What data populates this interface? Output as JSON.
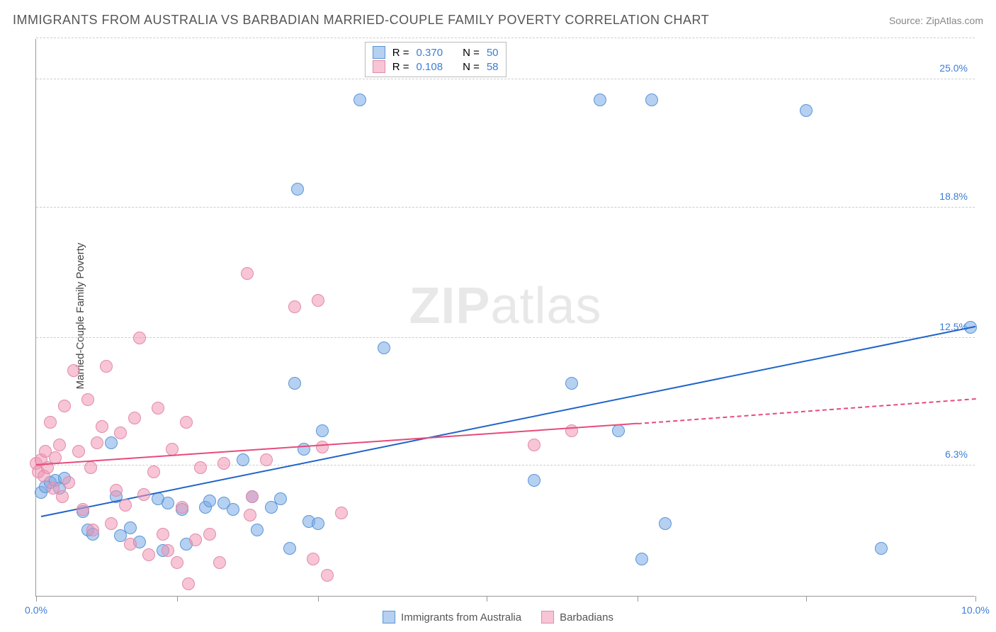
{
  "title": "IMMIGRANTS FROM AUSTRALIA VS BARBADIAN MARRIED-COUPLE FAMILY POVERTY CORRELATION CHART",
  "source": "Source: ZipAtlas.com",
  "watermark_a": "ZIP",
  "watermark_b": "atlas",
  "y_axis_label": "Married-Couple Family Poverty",
  "xlim": [
    0,
    10
  ],
  "ylim": [
    0,
    27
  ],
  "x_ticks": [
    0,
    1.5,
    3.0,
    4.8,
    6.4,
    8.2,
    10
  ],
  "x_tick_labels": {
    "0": "0.0%",
    "10": "10.0%"
  },
  "y_grid": [
    6.3,
    12.5,
    18.8,
    25.0
  ],
  "y_tick_labels": [
    "6.3%",
    "12.5%",
    "18.8%",
    "25.0%"
  ],
  "series": [
    {
      "name": "Immigrants from Australia",
      "color_fill": "rgba(120,170,230,0.55)",
      "color_stroke": "#5a96d6",
      "trend_color": "#1f63c9",
      "r_label": "R =",
      "r_value": "0.370",
      "n_label": "N =",
      "n_value": "50",
      "marker_size": 18,
      "trend": {
        "x1": 0.05,
        "y1": 3.8,
        "x2": 10.0,
        "y2": 13.0
      },
      "points": [
        [
          0.05,
          5.0
        ],
        [
          0.1,
          5.3
        ],
        [
          0.15,
          5.5
        ],
        [
          0.2,
          5.6
        ],
        [
          0.25,
          5.2
        ],
        [
          0.3,
          5.7
        ],
        [
          0.5,
          4.1
        ],
        [
          0.55,
          3.2
        ],
        [
          0.6,
          3.0
        ],
        [
          0.8,
          7.4
        ],
        [
          0.85,
          4.8
        ],
        [
          0.9,
          2.9
        ],
        [
          1.0,
          3.3
        ],
        [
          1.1,
          2.6
        ],
        [
          1.3,
          4.7
        ],
        [
          1.35,
          2.2
        ],
        [
          1.4,
          4.5
        ],
        [
          1.55,
          4.2
        ],
        [
          1.6,
          2.5
        ],
        [
          1.8,
          4.3
        ],
        [
          1.85,
          4.6
        ],
        [
          2.0,
          4.5
        ],
        [
          2.1,
          4.2
        ],
        [
          2.2,
          6.6
        ],
        [
          2.3,
          4.8
        ],
        [
          2.35,
          3.2
        ],
        [
          2.5,
          4.3
        ],
        [
          2.6,
          4.7
        ],
        [
          2.7,
          2.3
        ],
        [
          2.75,
          10.3
        ],
        [
          2.78,
          19.7
        ],
        [
          2.85,
          7.1
        ],
        [
          2.9,
          3.6
        ],
        [
          3.0,
          3.5
        ],
        [
          3.05,
          8.0
        ],
        [
          3.45,
          24.0
        ],
        [
          3.7,
          12.0
        ],
        [
          5.3,
          5.6
        ],
        [
          5.7,
          10.3
        ],
        [
          6.0,
          24.0
        ],
        [
          6.2,
          8.0
        ],
        [
          6.45,
          1.8
        ],
        [
          6.55,
          24.0
        ],
        [
          6.7,
          3.5
        ],
        [
          8.2,
          23.5
        ],
        [
          9.0,
          2.3
        ],
        [
          9.95,
          13.0
        ]
      ]
    },
    {
      "name": "Barbadians",
      "color_fill": "rgba(240,150,180,0.55)",
      "color_stroke": "#e28aa8",
      "trend_color": "#e74b7a",
      "r_label": "R =",
      "r_value": "0.108",
      "n_label": "N =",
      "n_value": "58",
      "marker_size": 18,
      "trend": {
        "x1": 0.0,
        "y1": 6.3,
        "x2": 6.4,
        "y2": 8.3
      },
      "trend_dash": {
        "x1": 6.4,
        "y1": 8.3,
        "x2": 10.0,
        "y2": 9.5
      },
      "points": [
        [
          0.0,
          6.4
        ],
        [
          0.02,
          6.0
        ],
        [
          0.05,
          6.6
        ],
        [
          0.08,
          5.8
        ],
        [
          0.1,
          7.0
        ],
        [
          0.12,
          6.2
        ],
        [
          0.15,
          8.4
        ],
        [
          0.18,
          5.2
        ],
        [
          0.2,
          6.7
        ],
        [
          0.25,
          7.3
        ],
        [
          0.28,
          4.8
        ],
        [
          0.3,
          9.2
        ],
        [
          0.35,
          5.5
        ],
        [
          0.4,
          10.9
        ],
        [
          0.45,
          7.0
        ],
        [
          0.5,
          4.2
        ],
        [
          0.55,
          9.5
        ],
        [
          0.58,
          6.2
        ],
        [
          0.6,
          3.2
        ],
        [
          0.65,
          7.4
        ],
        [
          0.7,
          8.2
        ],
        [
          0.75,
          11.1
        ],
        [
          0.8,
          3.5
        ],
        [
          0.85,
          5.1
        ],
        [
          0.9,
          7.9
        ],
        [
          0.95,
          4.4
        ],
        [
          1.0,
          2.5
        ],
        [
          1.05,
          8.6
        ],
        [
          1.1,
          12.5
        ],
        [
          1.15,
          4.9
        ],
        [
          1.2,
          2.0
        ],
        [
          1.25,
          6.0
        ],
        [
          1.3,
          9.1
        ],
        [
          1.35,
          3.0
        ],
        [
          1.4,
          2.2
        ],
        [
          1.45,
          7.1
        ],
        [
          1.5,
          1.6
        ],
        [
          1.55,
          4.3
        ],
        [
          1.6,
          8.4
        ],
        [
          1.62,
          0.6
        ],
        [
          1.7,
          2.7
        ],
        [
          1.75,
          6.2
        ],
        [
          1.85,
          3.0
        ],
        [
          1.95,
          1.6
        ],
        [
          2.0,
          6.4
        ],
        [
          2.25,
          15.6
        ],
        [
          2.28,
          3.9
        ],
        [
          2.3,
          4.8
        ],
        [
          2.45,
          6.6
        ],
        [
          2.75,
          14.0
        ],
        [
          2.95,
          1.8
        ],
        [
          3.0,
          14.3
        ],
        [
          3.05,
          7.2
        ],
        [
          3.1,
          1.0
        ],
        [
          3.25,
          4.0
        ],
        [
          5.3,
          7.3
        ],
        [
          5.7,
          8.0
        ]
      ]
    }
  ],
  "colors": {
    "title": "#555555",
    "source": "#888888",
    "axis": "#999999",
    "grid": "#cccccc",
    "x_label_blue": "#3b7dd8",
    "y_label_blue": "#3b7dd8"
  }
}
